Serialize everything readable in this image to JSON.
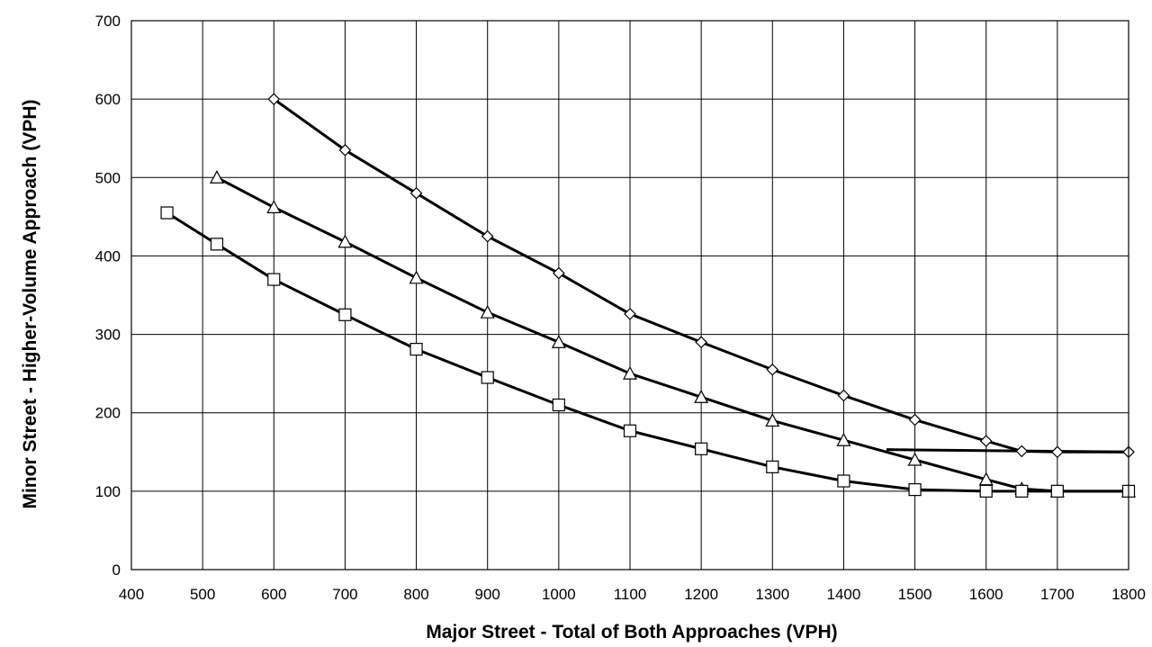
{
  "chart_data": {
    "type": "line",
    "xlabel": "Major Street - Total of Both Approaches (VPH)",
    "ylabel": "Minor Street - Higher-Volume Approach (VPH)",
    "xlim": [
      400,
      1800
    ],
    "ylim": [
      0,
      700
    ],
    "x_ticks": [
      400,
      500,
      600,
      700,
      800,
      900,
      1000,
      1100,
      1200,
      1300,
      1400,
      1500,
      1600,
      1700,
      1800
    ],
    "y_ticks": [
      0,
      100,
      200,
      300,
      400,
      500,
      600,
      700
    ],
    "grid": true,
    "legend": "none",
    "series": [
      {
        "marker": "diamond",
        "x": [
          600,
          700,
          800,
          900,
          1000,
          1100,
          1200,
          1300,
          1400,
          1500,
          1600,
          1650,
          1700,
          1800
        ],
        "y": [
          600,
          535,
          480,
          425,
          378,
          326,
          290,
          255,
          222,
          191,
          164,
          151,
          150,
          150
        ]
      },
      {
        "marker": "triangle",
        "x": [
          520,
          600,
          700,
          800,
          900,
          1000,
          1100,
          1200,
          1300,
          1400,
          1500,
          1600,
          1650,
          1700,
          1800
        ],
        "y": [
          500,
          462,
          418,
          372,
          328,
          290,
          250,
          220,
          190,
          165,
          140,
          115,
          103,
          100,
          100
        ]
      },
      {
        "marker": "square",
        "x": [
          450,
          520,
          600,
          700,
          800,
          900,
          1000,
          1100,
          1200,
          1300,
          1400,
          1500,
          1600,
          1650,
          1700,
          1800
        ],
        "y": [
          455,
          415,
          370,
          325,
          281,
          245,
          210,
          177,
          154,
          131,
          113,
          102,
          100,
          100,
          100,
          100
        ]
      }
    ],
    "annotations": [
      {
        "type": "line",
        "x": [
          1460,
          1800
        ],
        "y": [
          153,
          150
        ]
      }
    ]
  }
}
